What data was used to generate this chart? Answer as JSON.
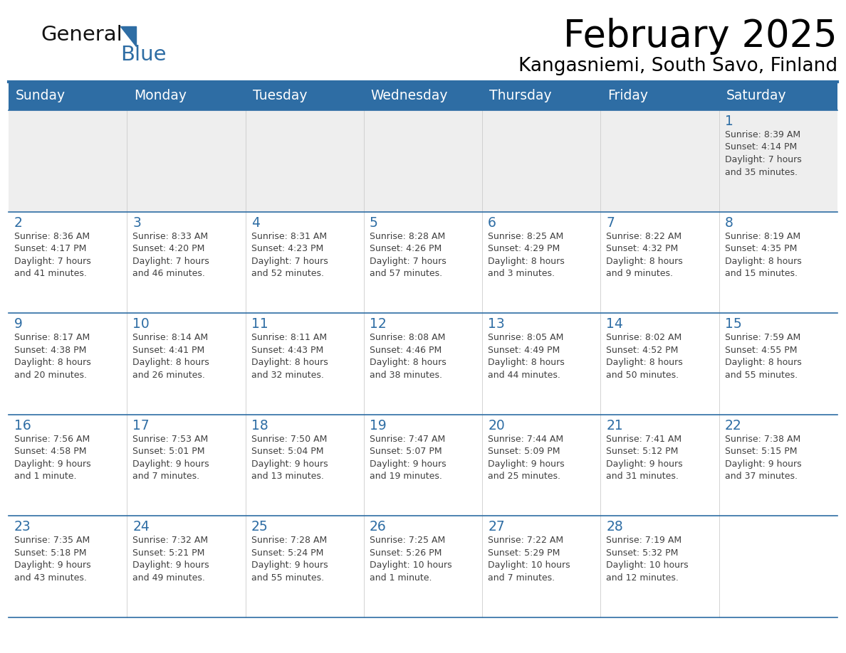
{
  "title": "February 2025",
  "subtitle": "Kangasniemi, South Savo, Finland",
  "header_bg": "#2E6DA4",
  "header_text_color": "#FFFFFF",
  "cell_bg_week1": "#EEEEEE",
  "cell_bg_normal": "#FFFFFF",
  "day_number_color": "#2E6DA4",
  "info_text_color": "#404040",
  "border_color": "#2E6DA4",
  "days_of_week": [
    "Sunday",
    "Monday",
    "Tuesday",
    "Wednesday",
    "Thursday",
    "Friday",
    "Saturday"
  ],
  "weeks": [
    [
      {
        "day": "",
        "info": ""
      },
      {
        "day": "",
        "info": ""
      },
      {
        "day": "",
        "info": ""
      },
      {
        "day": "",
        "info": ""
      },
      {
        "day": "",
        "info": ""
      },
      {
        "day": "",
        "info": ""
      },
      {
        "day": "1",
        "info": "Sunrise: 8:39 AM\nSunset: 4:14 PM\nDaylight: 7 hours\nand 35 minutes."
      }
    ],
    [
      {
        "day": "2",
        "info": "Sunrise: 8:36 AM\nSunset: 4:17 PM\nDaylight: 7 hours\nand 41 minutes."
      },
      {
        "day": "3",
        "info": "Sunrise: 8:33 AM\nSunset: 4:20 PM\nDaylight: 7 hours\nand 46 minutes."
      },
      {
        "day": "4",
        "info": "Sunrise: 8:31 AM\nSunset: 4:23 PM\nDaylight: 7 hours\nand 52 minutes."
      },
      {
        "day": "5",
        "info": "Sunrise: 8:28 AM\nSunset: 4:26 PM\nDaylight: 7 hours\nand 57 minutes."
      },
      {
        "day": "6",
        "info": "Sunrise: 8:25 AM\nSunset: 4:29 PM\nDaylight: 8 hours\nand 3 minutes."
      },
      {
        "day": "7",
        "info": "Sunrise: 8:22 AM\nSunset: 4:32 PM\nDaylight: 8 hours\nand 9 minutes."
      },
      {
        "day": "8",
        "info": "Sunrise: 8:19 AM\nSunset: 4:35 PM\nDaylight: 8 hours\nand 15 minutes."
      }
    ],
    [
      {
        "day": "9",
        "info": "Sunrise: 8:17 AM\nSunset: 4:38 PM\nDaylight: 8 hours\nand 20 minutes."
      },
      {
        "day": "10",
        "info": "Sunrise: 8:14 AM\nSunset: 4:41 PM\nDaylight: 8 hours\nand 26 minutes."
      },
      {
        "day": "11",
        "info": "Sunrise: 8:11 AM\nSunset: 4:43 PM\nDaylight: 8 hours\nand 32 minutes."
      },
      {
        "day": "12",
        "info": "Sunrise: 8:08 AM\nSunset: 4:46 PM\nDaylight: 8 hours\nand 38 minutes."
      },
      {
        "day": "13",
        "info": "Sunrise: 8:05 AM\nSunset: 4:49 PM\nDaylight: 8 hours\nand 44 minutes."
      },
      {
        "day": "14",
        "info": "Sunrise: 8:02 AM\nSunset: 4:52 PM\nDaylight: 8 hours\nand 50 minutes."
      },
      {
        "day": "15",
        "info": "Sunrise: 7:59 AM\nSunset: 4:55 PM\nDaylight: 8 hours\nand 55 minutes."
      }
    ],
    [
      {
        "day": "16",
        "info": "Sunrise: 7:56 AM\nSunset: 4:58 PM\nDaylight: 9 hours\nand 1 minute."
      },
      {
        "day": "17",
        "info": "Sunrise: 7:53 AM\nSunset: 5:01 PM\nDaylight: 9 hours\nand 7 minutes."
      },
      {
        "day": "18",
        "info": "Sunrise: 7:50 AM\nSunset: 5:04 PM\nDaylight: 9 hours\nand 13 minutes."
      },
      {
        "day": "19",
        "info": "Sunrise: 7:47 AM\nSunset: 5:07 PM\nDaylight: 9 hours\nand 19 minutes."
      },
      {
        "day": "20",
        "info": "Sunrise: 7:44 AM\nSunset: 5:09 PM\nDaylight: 9 hours\nand 25 minutes."
      },
      {
        "day": "21",
        "info": "Sunrise: 7:41 AM\nSunset: 5:12 PM\nDaylight: 9 hours\nand 31 minutes."
      },
      {
        "day": "22",
        "info": "Sunrise: 7:38 AM\nSunset: 5:15 PM\nDaylight: 9 hours\nand 37 minutes."
      }
    ],
    [
      {
        "day": "23",
        "info": "Sunrise: 7:35 AM\nSunset: 5:18 PM\nDaylight: 9 hours\nand 43 minutes."
      },
      {
        "day": "24",
        "info": "Sunrise: 7:32 AM\nSunset: 5:21 PM\nDaylight: 9 hours\nand 49 minutes."
      },
      {
        "day": "25",
        "info": "Sunrise: 7:28 AM\nSunset: 5:24 PM\nDaylight: 9 hours\nand 55 minutes."
      },
      {
        "day": "26",
        "info": "Sunrise: 7:25 AM\nSunset: 5:26 PM\nDaylight: 10 hours\nand 1 minute."
      },
      {
        "day": "27",
        "info": "Sunrise: 7:22 AM\nSunset: 5:29 PM\nDaylight: 10 hours\nand 7 minutes."
      },
      {
        "day": "28",
        "info": "Sunrise: 7:19 AM\nSunset: 5:32 PM\nDaylight: 10 hours\nand 12 minutes."
      },
      {
        "day": "",
        "info": ""
      }
    ]
  ],
  "figsize": [
    11.88,
    9.18
  ],
  "dpi": 100
}
